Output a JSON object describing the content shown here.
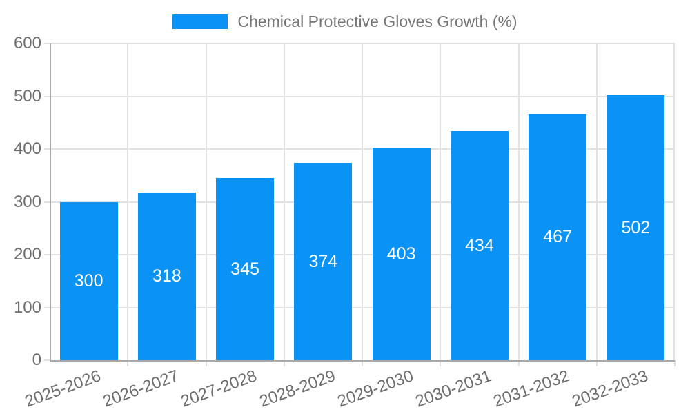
{
  "chart_data": {
    "type": "bar",
    "title": "Chemical Protective Gloves Growth (%)",
    "categories": [
      "2025-2026",
      "2026-2027",
      "2027-2028",
      "2028-2029",
      "2029-2030",
      "2030-2031",
      "2031-2032",
      "2032-2033"
    ],
    "series": [
      {
        "name": "Chemical Protective Gloves Growth (%)",
        "values": [
          300,
          318,
          345,
          374,
          403,
          434,
          467,
          502
        ]
      }
    ],
    "value_labels": [
      "300",
      "318",
      "345",
      "374",
      "403",
      "434",
      "467",
      "502"
    ],
    "xlabel": "",
    "ylabel": "",
    "ylim": [
      0,
      600
    ],
    "yticks": [
      0,
      100,
      200,
      300,
      400,
      500,
      600
    ],
    "grid": "on",
    "legend_position": "top-center",
    "colors": {
      "bar": "#0B92F5",
      "grid": "#E2E2E2",
      "axis": "#A8A8A8",
      "tick_text": "#6E6E6E",
      "title_text": "#757575",
      "value_text": "#FFFFFF",
      "background": "#FFFFFF"
    }
  }
}
